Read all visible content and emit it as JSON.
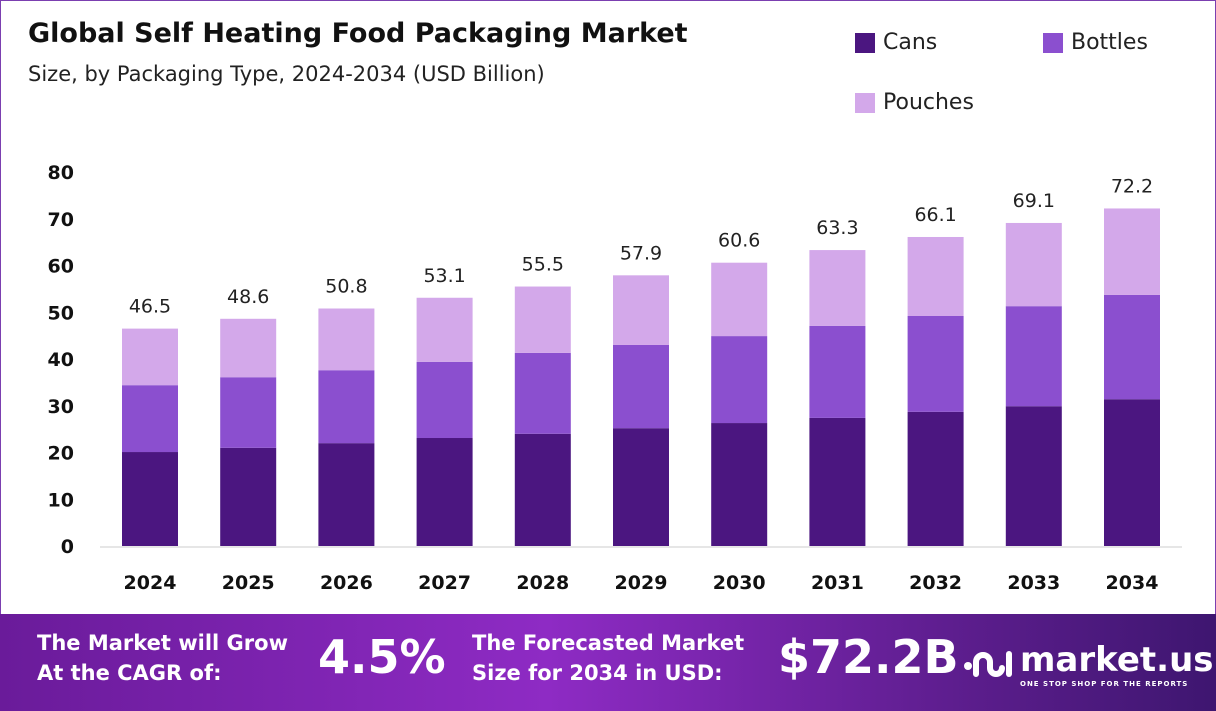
{
  "chart_data": {
    "type": "bar",
    "stacked": true,
    "title": "Global Self Heating Food Packaging Market",
    "subtitle": "Size, by Packaging Type, 2024-2034 (USD Billion)",
    "categories": [
      "2024",
      "2025",
      "2026",
      "2027",
      "2028",
      "2029",
      "2030",
      "2031",
      "2032",
      "2033",
      "2034"
    ],
    "series": [
      {
        "name": "Cans",
        "color": "#4b1680",
        "values": [
          20.1,
          21.0,
          22.0,
          23.1,
          24.0,
          25.2,
          26.3,
          27.4,
          28.7,
          29.9,
          31.4
        ]
      },
      {
        "name": "Bottles",
        "color": "#8b4fcf",
        "values": [
          14.3,
          15.1,
          15.6,
          16.3,
          17.3,
          17.8,
          18.6,
          19.7,
          20.5,
          21.4,
          22.3
        ]
      },
      {
        "name": "Pouches",
        "color": "#d3a8ea",
        "values": [
          12.1,
          12.5,
          13.2,
          13.7,
          14.2,
          14.9,
          15.7,
          16.2,
          16.9,
          17.8,
          18.5
        ]
      }
    ],
    "totals": [
      "46.5",
      "48.6",
      "50.8",
      "53.1",
      "55.5",
      "57.9",
      "60.6",
      "63.3",
      "66.1",
      "69.1",
      "72.2"
    ],
    "ylim": [
      0,
      80
    ],
    "yticks": [
      "0",
      "10",
      "20",
      "30",
      "40",
      "50",
      "60",
      "70",
      "80"
    ],
    "grid": false,
    "legend_position": "top-right"
  },
  "footer": {
    "cagr_label_1": "The Market will Grow",
    "cagr_label_2": "At the CAGR of:",
    "cagr_value": "4.5%",
    "forecast_label_1": "The Forecasted Market",
    "forecast_label_2": "Size for 2034 in USD:",
    "forecast_value": "$72.2B",
    "logo_name": "market.us",
    "logo_tagline": "ONE STOP SHOP FOR THE REPORTS"
  }
}
